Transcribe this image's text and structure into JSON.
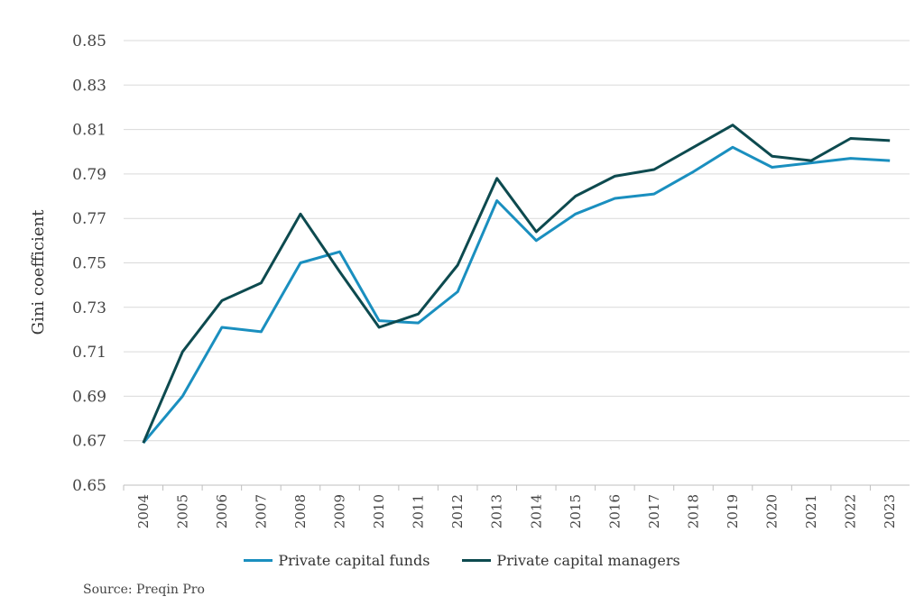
{
  "chart_data": {
    "type": "line",
    "ylabel": "Gini coefficient",
    "xlabel": "",
    "ylim": [
      0.65,
      0.85
    ],
    "yticks": [
      "0.65",
      "0.67",
      "0.69",
      "0.71",
      "0.73",
      "0.75",
      "0.77",
      "0.79",
      "0.81",
      "0.83",
      "0.85"
    ],
    "x": [
      "2004",
      "2005",
      "2006",
      "2007",
      "2008",
      "2009",
      "2010",
      "2011",
      "2012",
      "2013",
      "2014",
      "2015",
      "2016",
      "2017",
      "2018",
      "2019",
      "2020",
      "2021",
      "2022",
      "2023"
    ],
    "series": [
      {
        "name": "Private capital funds",
        "color": "#1a8fbf",
        "values": [
          0.669,
          0.69,
          0.721,
          0.719,
          0.75,
          0.755,
          0.724,
          0.723,
          0.737,
          0.778,
          0.76,
          0.772,
          0.779,
          0.781,
          0.791,
          0.802,
          0.793,
          0.795,
          0.797,
          0.796
        ]
      },
      {
        "name": "Private capital managers",
        "color": "#0d4a4f",
        "values": [
          0.669,
          0.71,
          0.733,
          0.741,
          0.772,
          0.746,
          0.721,
          0.727,
          0.749,
          0.788,
          0.764,
          0.78,
          0.789,
          0.792,
          0.802,
          0.812,
          0.798,
          0.796,
          0.806,
          0.805
        ]
      }
    ],
    "grid": true,
    "legend_position": "bottom"
  },
  "source": "Source: Preqin Pro"
}
